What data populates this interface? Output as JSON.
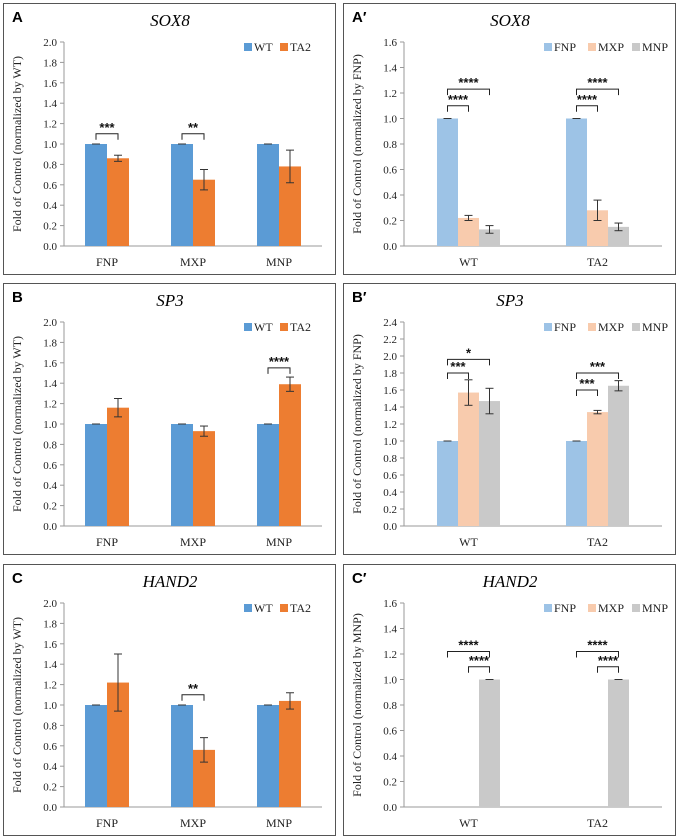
{
  "chart_data": [
    {
      "id": "A",
      "panel_label": "A",
      "type": "bar",
      "title": "SOX8",
      "ylabel": "Fold of Control (normalized by WT)",
      "xlabel": "",
      "ylim": [
        0,
        2.0
      ],
      "ystep": 0.2,
      "yticks": [
        "0.0",
        "0.2",
        "0.4",
        "0.6",
        "0.8",
        "1.0",
        "1.2",
        "1.4",
        "1.6",
        "1.8",
        "2.0"
      ],
      "legend_position": "top-right",
      "categories": [
        "FNP",
        "MXP",
        "MNP"
      ],
      "series": [
        {
          "name": "WT",
          "color": "#5b9bd5",
          "values": [
            1.0,
            1.0,
            1.0
          ],
          "errors": [
            0.0,
            0.0,
            0.0
          ]
        },
        {
          "name": "TA2",
          "color": "#ed7d31",
          "values": [
            0.86,
            0.65,
            0.78
          ],
          "errors": [
            0.03,
            0.1,
            0.16
          ]
        }
      ],
      "significance": [
        {
          "group": 0,
          "from": 0,
          "to": 1,
          "y": 1.1,
          "label": "***"
        },
        {
          "group": 1,
          "from": 0,
          "to": 1,
          "y": 1.1,
          "label": "**"
        }
      ]
    },
    {
      "id": "A2",
      "panel_label": "A′",
      "type": "bar",
      "title": "SOX8",
      "ylabel": "Fold of Control (normalized by FNP)",
      "xlabel": "",
      "ylim": [
        0,
        1.6
      ],
      "ystep": 0.2,
      "yticks": [
        "0.0",
        "0.2",
        "0.4",
        "0.6",
        "0.8",
        "1.0",
        "1.2",
        "1.4",
        "1.6"
      ],
      "legend_position": "top-right",
      "categories": [
        "WT",
        "TA2"
      ],
      "series": [
        {
          "name": "FNP",
          "color": "#9dc3e6",
          "values": [
            1.0,
            1.0
          ],
          "errors": [
            0.0,
            0.0
          ]
        },
        {
          "name": "MXP",
          "color": "#f8cbad",
          "values": [
            0.22,
            0.28
          ],
          "errors": [
            0.02,
            0.08
          ]
        },
        {
          "name": "MNP",
          "color": "#c9c9c9",
          "values": [
            0.13,
            0.15
          ],
          "errors": [
            0.03,
            0.03
          ]
        }
      ],
      "significance": [
        {
          "group": 0,
          "from": 0,
          "to": 1,
          "y": 1.1,
          "label": "****"
        },
        {
          "group": 0,
          "from": 0,
          "to": 2,
          "y": 1.23,
          "label": "****"
        },
        {
          "group": 1,
          "from": 0,
          "to": 1,
          "y": 1.1,
          "label": "****"
        },
        {
          "group": 1,
          "from": 0,
          "to": 2,
          "y": 1.23,
          "label": "****"
        }
      ]
    },
    {
      "id": "B",
      "panel_label": "B",
      "type": "bar",
      "title": "SP3",
      "ylabel": "Fold of Control (normalized by WT)",
      "xlabel": "",
      "ylim": [
        0,
        2.0
      ],
      "ystep": 0.2,
      "yticks": [
        "0.0",
        "0.2",
        "0.4",
        "0.6",
        "0.8",
        "1.0",
        "1.2",
        "1.4",
        "1.6",
        "1.8",
        "2.0"
      ],
      "legend_position": "top-right",
      "categories": [
        "FNP",
        "MXP",
        "MNP"
      ],
      "series": [
        {
          "name": "WT",
          "color": "#5b9bd5",
          "values": [
            1.0,
            1.0,
            1.0
          ],
          "errors": [
            0.0,
            0.0,
            0.0
          ]
        },
        {
          "name": "TA2",
          "color": "#ed7d31",
          "values": [
            1.16,
            0.93,
            1.39
          ],
          "errors": [
            0.09,
            0.05,
            0.07
          ]
        }
      ],
      "significance": [
        {
          "group": 2,
          "from": 0,
          "to": 1,
          "y": 1.55,
          "label": "****"
        }
      ]
    },
    {
      "id": "B2",
      "panel_label": "B′",
      "type": "bar",
      "title": "SP3",
      "ylabel": "Fold of Control (normalized by FNP)",
      "xlabel": "",
      "ylim": [
        0,
        2.4
      ],
      "ystep": 0.2,
      "yticks": [
        "0.0",
        "0.2",
        "0.4",
        "0.6",
        "0.8",
        "1.0",
        "1.2",
        "1.4",
        "1.6",
        "1.8",
        "2.0",
        "2.2",
        "2.4"
      ],
      "legend_position": "top-right",
      "categories": [
        "WT",
        "TA2"
      ],
      "series": [
        {
          "name": "FNP",
          "color": "#9dc3e6",
          "values": [
            1.0,
            1.0
          ],
          "errors": [
            0.0,
            0.0
          ]
        },
        {
          "name": "MXP",
          "color": "#f8cbad",
          "values": [
            1.57,
            1.34
          ],
          "errors": [
            0.15,
            0.02
          ]
        },
        {
          "name": "MNP",
          "color": "#c9c9c9",
          "values": [
            1.47,
            1.65
          ],
          "errors": [
            0.15,
            0.06
          ]
        }
      ],
      "significance": [
        {
          "group": 0,
          "from": 0,
          "to": 1,
          "y": 1.8,
          "label": "***"
        },
        {
          "group": 0,
          "from": 0,
          "to": 2,
          "y": 1.96,
          "label": "*"
        },
        {
          "group": 1,
          "from": 0,
          "to": 1,
          "y": 1.6,
          "label": "***"
        },
        {
          "group": 1,
          "from": 0,
          "to": 2,
          "y": 1.8,
          "label": "***"
        }
      ]
    },
    {
      "id": "C",
      "panel_label": "C",
      "type": "bar",
      "title": "HAND2",
      "ylabel": "Fold of Control (normalized by WT)",
      "xlabel": "",
      "ylim": [
        0,
        2.0
      ],
      "ystep": 0.2,
      "yticks": [
        "0.0",
        "0.2",
        "0.4",
        "0.6",
        "0.8",
        "1.0",
        "1.2",
        "1.4",
        "1.6",
        "1.8",
        "2.0"
      ],
      "legend_position": "top-right",
      "categories": [
        "FNP",
        "MXP",
        "MNP"
      ],
      "series": [
        {
          "name": "WT",
          "color": "#5b9bd5",
          "values": [
            1.0,
            1.0,
            1.0
          ],
          "errors": [
            0.0,
            0.0,
            0.0
          ]
        },
        {
          "name": "TA2",
          "color": "#ed7d31",
          "values": [
            1.22,
            0.56,
            1.04
          ],
          "errors": [
            0.28,
            0.12,
            0.08
          ]
        }
      ],
      "significance": [
        {
          "group": 1,
          "from": 0,
          "to": 1,
          "y": 1.1,
          "label": "**"
        }
      ]
    },
    {
      "id": "C2",
      "panel_label": "C′",
      "type": "bar",
      "title": "HAND2",
      "ylabel": "Fold of Control (normalized by MNP)",
      "xlabel": "",
      "ylim": [
        0,
        1.6
      ],
      "ystep": 0.2,
      "yticks": [
        "0.0",
        "0.2",
        "0.4",
        "0.6",
        "0.8",
        "1.0",
        "1.2",
        "1.4",
        "1.6"
      ],
      "legend_position": "top-right",
      "categories": [
        "WT",
        "TA2"
      ],
      "series": [
        {
          "name": "FNP",
          "color": "#9dc3e6",
          "values": [
            0.0,
            0.0
          ],
          "errors": [
            0.0,
            0.0
          ]
        },
        {
          "name": "MXP",
          "color": "#f8cbad",
          "values": [
            0.0,
            0.0
          ],
          "errors": [
            0.0,
            0.0
          ]
        },
        {
          "name": "MNP",
          "color": "#c9c9c9",
          "values": [
            1.0,
            1.0
          ],
          "errors": [
            0.0,
            0.0
          ]
        }
      ],
      "significance": [
        {
          "group": 0,
          "from": 1,
          "to": 2,
          "y": 1.1,
          "label": "****"
        },
        {
          "group": 0,
          "from": 0,
          "to": 2,
          "y": 1.22,
          "label": "****"
        },
        {
          "group": 1,
          "from": 1,
          "to": 2,
          "y": 1.1,
          "label": "****"
        },
        {
          "group": 1,
          "from": 0,
          "to": 2,
          "y": 1.22,
          "label": "****"
        }
      ]
    }
  ]
}
